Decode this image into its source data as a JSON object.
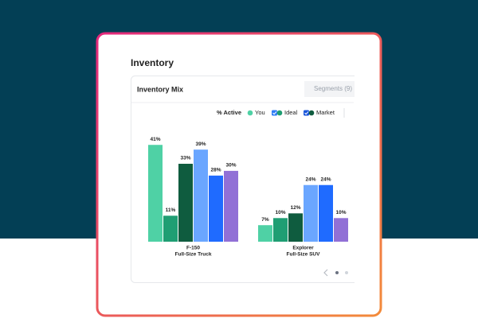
{
  "card": {
    "title": "Inventory",
    "panel_title": "Inventory Mix",
    "button": "Segments (9)"
  },
  "chart_data": {
    "type": "bar",
    "categories": [
      "F-150",
      "Explorer"
    ],
    "category_subtitles": [
      "Full-Size Truck",
      "Full-Size SUV"
    ],
    "legend": {
      "title": "% Active",
      "items": [
        {
          "label": "You",
          "color": "#4fd1a5"
        },
        {
          "label": "Ideal",
          "color": "#1f9e73",
          "check": "#2f7df6"
        },
        {
          "label": "Market",
          "color": "#0f5c3f",
          "check": "#1a56db"
        }
      ]
    },
    "series": [
      {
        "color": "#4fd1a5",
        "values": [
          41,
          7
        ],
        "value_labels": [
          "41%",
          "7%"
        ]
      },
      {
        "color": "#1f9e73",
        "values": [
          11,
          10
        ],
        "value_labels": [
          "11%",
          "10%"
        ]
      },
      {
        "color": "#0f5c3f",
        "values": [
          33,
          12
        ],
        "value_labels": [
          "33%",
          "12%"
        ]
      },
      {
        "color": "#6aa6ff",
        "values": [
          39,
          24
        ],
        "value_labels": [
          "39%",
          "24%"
        ]
      },
      {
        "color": "#1f6bff",
        "values": [
          28,
          24
        ],
        "value_labels": [
          "28%",
          "24%"
        ]
      },
      {
        "color": "#9170d6",
        "values": [
          30,
          10
        ],
        "value_labels": [
          "30%",
          "10%"
        ]
      }
    ]
  }
}
